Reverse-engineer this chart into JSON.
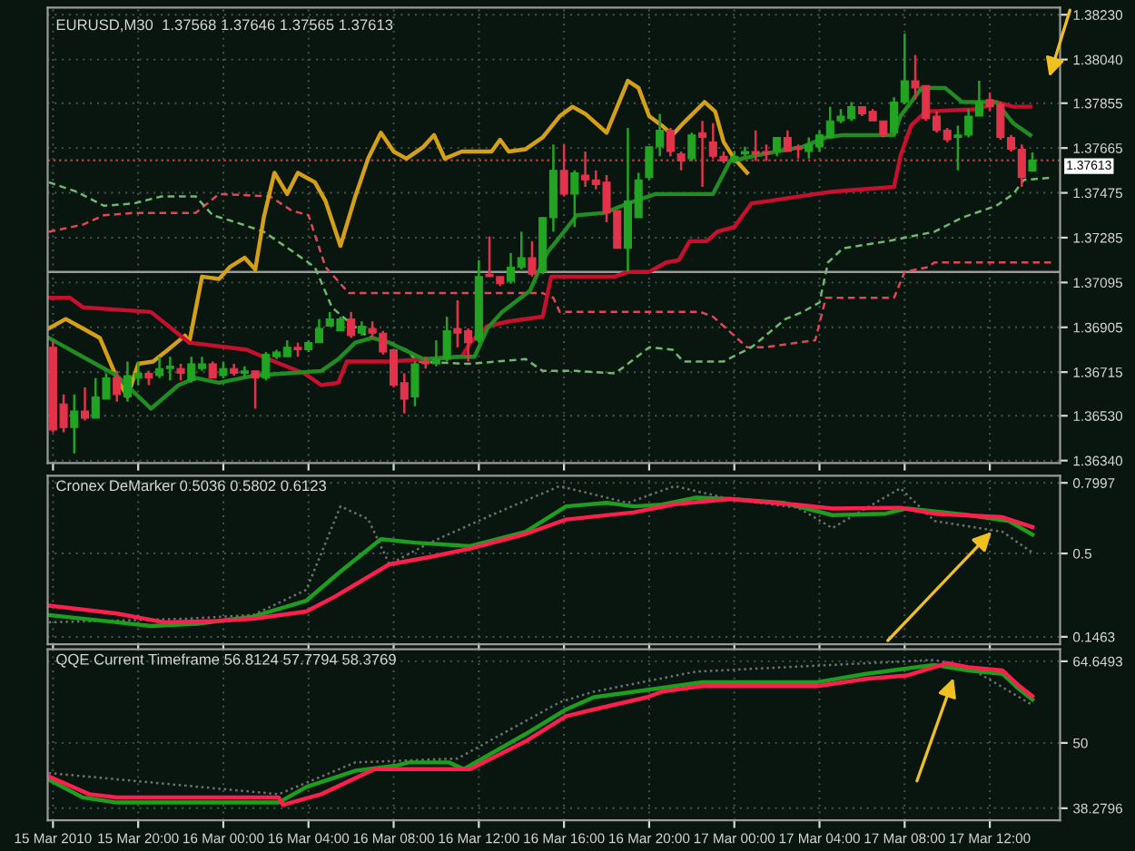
{
  "chart_data": [
    {
      "type": "candlestick",
      "title": "EURUSD,M30  1.37568 1.37646 1.37565 1.37613",
      "grid": true,
      "legend": false,
      "tick_labels": "y",
      "x": [
        "2010-03-15T16:00",
        "2010-03-15T16:30",
        "2010-03-15T17:00",
        "2010-03-15T17:30",
        "2010-03-15T18:00",
        "2010-03-15T18:30",
        "2010-03-15T19:00",
        "2010-03-15T19:30",
        "2010-03-15T20:00",
        "2010-03-15T20:30",
        "2010-03-15T21:00",
        "2010-03-15T21:30",
        "2010-03-15T22:00",
        "2010-03-15T22:30",
        "2010-03-15T23:00",
        "2010-03-15T23:30",
        "2010-03-16T00:00",
        "2010-03-16T00:30",
        "2010-03-16T01:00",
        "2010-03-16T01:30",
        "2010-03-16T02:00",
        "2010-03-16T02:30",
        "2010-03-16T03:00",
        "2010-03-16T03:30",
        "2010-03-16T04:00",
        "2010-03-16T04:30",
        "2010-03-16T05:00",
        "2010-03-16T05:30",
        "2010-03-16T06:00",
        "2010-03-16T06:30",
        "2010-03-16T07:00",
        "2010-03-16T07:30",
        "2010-03-16T08:00",
        "2010-03-16T08:30",
        "2010-03-16T09:00",
        "2010-03-16T09:30",
        "2010-03-16T10:00",
        "2010-03-16T10:30",
        "2010-03-16T11:00",
        "2010-03-16T11:30",
        "2010-03-16T12:00",
        "2010-03-16T12:30",
        "2010-03-16T13:00",
        "2010-03-16T13:30",
        "2010-03-16T14:00",
        "2010-03-16T14:30",
        "2010-03-16T15:00",
        "2010-03-16T15:30",
        "2010-03-16T16:00",
        "2010-03-16T16:30",
        "2010-03-16T17:00",
        "2010-03-16T17:30",
        "2010-03-16T18:00",
        "2010-03-16T18:30",
        "2010-03-16T19:00",
        "2010-03-16T19:30",
        "2010-03-16T20:00",
        "2010-03-16T20:30",
        "2010-03-16T21:00",
        "2010-03-16T21:30",
        "2010-03-16T22:00",
        "2010-03-16T22:30",
        "2010-03-16T23:00",
        "2010-03-16T23:30",
        "2010-03-17T00:00",
        "2010-03-17T00:30",
        "2010-03-17T01:00",
        "2010-03-17T01:30",
        "2010-03-17T02:00",
        "2010-03-17T02:30",
        "2010-03-17T03:00",
        "2010-03-17T03:30",
        "2010-03-17T04:00",
        "2010-03-17T04:30",
        "2010-03-17T05:00",
        "2010-03-17T05:30",
        "2010-03-17T06:00",
        "2010-03-17T06:30",
        "2010-03-17T07:00",
        "2010-03-17T07:30",
        "2010-03-17T08:00",
        "2010-03-17T08:30",
        "2010-03-17T09:00",
        "2010-03-17T09:30",
        "2010-03-17T10:00",
        "2010-03-17T10:30",
        "2010-03-17T11:00",
        "2010-03-17T11:30",
        "2010-03-17T12:00",
        "2010-03-17T12:30",
        "2010-03-17T13:00",
        "2010-03-17T13:30",
        "2010-03-17T14:00"
      ],
      "ohlc": [
        [
          1.3682,
          1.3685,
          1.3646,
          1.3647
        ],
        [
          1.3658,
          1.3662,
          1.3646,
          1.3648
        ],
        [
          1.3648,
          1.3662,
          1.3637,
          1.3655
        ],
        [
          1.3655,
          1.3665,
          1.3651,
          1.3652
        ],
        [
          1.3652,
          1.3669,
          1.3652,
          1.3661
        ],
        [
          1.366,
          1.3671,
          1.366,
          1.3669
        ],
        [
          1.3669,
          1.3672,
          1.3659,
          1.3662
        ],
        [
          1.3661,
          1.3676,
          1.3659,
          1.367
        ],
        [
          1.3669,
          1.3676,
          1.3666,
          1.3671
        ],
        [
          1.3671,
          1.3672,
          1.3666,
          1.3669
        ],
        [
          1.367,
          1.3678,
          1.3669,
          1.3673
        ],
        [
          1.3673,
          1.3678,
          1.3668,
          1.3674
        ],
        [
          1.3673,
          1.3675,
          1.3668,
          1.3671
        ],
        [
          1.3668,
          1.3678,
          1.3667,
          1.3675
        ],
        [
          1.3673,
          1.3678,
          1.3672,
          1.3675
        ],
        [
          1.3675,
          1.3676,
          1.3669,
          1.3669
        ],
        [
          1.367,
          1.3676,
          1.3669,
          1.3673
        ],
        [
          1.3673,
          1.3675,
          1.367,
          1.3671
        ],
        [
          1.3671,
          1.3674,
          1.3669,
          1.3672
        ],
        [
          1.3672,
          1.3672,
          1.3656,
          1.3669
        ],
        [
          1.3669,
          1.368,
          1.3668,
          1.3679
        ],
        [
          1.3678,
          1.3681,
          1.3677,
          1.368
        ],
        [
          1.3678,
          1.3685,
          1.3678,
          1.3682
        ],
        [
          1.3682,
          1.3684,
          1.3678,
          1.3681
        ],
        [
          1.3681,
          1.3685,
          1.368,
          1.3684
        ],
        [
          1.3684,
          1.3694,
          1.3684,
          1.369
        ],
        [
          1.3691,
          1.3697,
          1.3691,
          1.3694
        ],
        [
          1.3689,
          1.3695,
          1.3689,
          1.3694
        ],
        [
          1.3694,
          1.3697,
          1.3686,
          1.3687
        ],
        [
          1.3688,
          1.3693,
          1.3687,
          1.3691
        ],
        [
          1.369,
          1.3693,
          1.3686,
          1.3688
        ],
        [
          1.3688,
          1.3689,
          1.3679,
          1.368
        ],
        [
          1.3681,
          1.3681,
          1.3665,
          1.3666
        ],
        [
          1.3667,
          1.3671,
          1.3654,
          1.366
        ],
        [
          1.3661,
          1.3676,
          1.3657,
          1.3675
        ],
        [
          1.3676,
          1.3678,
          1.3673,
          1.3675
        ],
        [
          1.3675,
          1.3685,
          1.3674,
          1.3677
        ],
        [
          1.3677,
          1.3695,
          1.3676,
          1.3689
        ],
        [
          1.369,
          1.3702,
          1.3682,
          1.3688
        ],
        [
          1.3689,
          1.369,
          1.3676,
          1.3684
        ],
        [
          1.3685,
          1.3719,
          1.3684,
          1.3712
        ],
        [
          1.3713,
          1.3729,
          1.3712,
          1.3712
        ],
        [
          1.3712,
          1.3712,
          1.3708,
          1.3709
        ],
        [
          1.371,
          1.3722,
          1.3709,
          1.3716
        ],
        [
          1.3716,
          1.3731,
          1.3715,
          1.372
        ],
        [
          1.372,
          1.3727,
          1.3712,
          1.3713
        ],
        [
          1.3714,
          1.3737,
          1.3713,
          1.3737
        ],
        [
          1.3737,
          1.3768,
          1.3731,
          1.3757
        ],
        [
          1.3757,
          1.3768,
          1.3746,
          1.3747
        ],
        [
          1.3747,
          1.3757,
          1.3733,
          1.3756
        ],
        [
          1.3755,
          1.3765,
          1.375,
          1.3753
        ],
        [
          1.3753,
          1.3757,
          1.3749,
          1.3751
        ],
        [
          1.3752,
          1.3755,
          1.3735,
          1.3739
        ],
        [
          1.374,
          1.374,
          1.3724,
          1.3724
        ],
        [
          1.3724,
          1.3775,
          1.3714,
          1.3744
        ],
        [
          1.3737,
          1.3756,
          1.3737,
          1.3753
        ],
        [
          1.3754,
          1.3767,
          1.3753,
          1.3767
        ],
        [
          1.3767,
          1.3781,
          1.3763,
          1.3774
        ],
        [
          1.3774,
          1.3775,
          1.3763,
          1.3765
        ],
        [
          1.3764,
          1.3765,
          1.3757,
          1.3761
        ],
        [
          1.3762,
          1.3773,
          1.3761,
          1.3772
        ],
        [
          1.3773,
          1.3778,
          1.375,
          1.3771
        ],
        [
          1.3769,
          1.3777,
          1.3762,
          1.3763
        ],
        [
          1.3763,
          1.3765,
          1.376,
          1.3761
        ],
        [
          1.3761,
          1.3765,
          1.376,
          1.3763
        ],
        [
          1.3764,
          1.3767,
          1.3763,
          1.3765
        ],
        [
          1.3765,
          1.3774,
          1.3761,
          1.3764
        ],
        [
          1.3765,
          1.3768,
          1.3761,
          1.3764
        ],
        [
          1.3765,
          1.3771,
          1.3763,
          1.3771
        ],
        [
          1.3771,
          1.3774,
          1.3765,
          1.3765
        ],
        [
          1.3767,
          1.3768,
          1.3762,
          1.3766
        ],
        [
          1.3765,
          1.3771,
          1.3762,
          1.3768
        ],
        [
          1.3767,
          1.3774,
          1.3765,
          1.3772
        ],
        [
          1.3771,
          1.3784,
          1.3771,
          1.3778
        ],
        [
          1.3778,
          1.3783,
          1.3777,
          1.378
        ],
        [
          1.3779,
          1.3786,
          1.3778,
          1.3784
        ],
        [
          1.3784,
          1.3784,
          1.378,
          1.3781
        ],
        [
          1.3782,
          1.3783,
          1.3778,
          1.3778
        ],
        [
          1.3778,
          1.3778,
          1.3771,
          1.3772
        ],
        [
          1.3773,
          1.3788,
          1.3772,
          1.3786
        ],
        [
          1.3786,
          1.3815,
          1.3785,
          1.3795
        ],
        [
          1.3795,
          1.3806,
          1.3787,
          1.3792
        ],
        [
          1.3793,
          1.3793,
          1.3778,
          1.3779
        ],
        [
          1.378,
          1.3782,
          1.3773,
          1.3774
        ],
        [
          1.3774,
          1.3775,
          1.3769,
          1.377
        ],
        [
          1.3771,
          1.3776,
          1.3757,
          1.3772
        ],
        [
          1.3772,
          1.3783,
          1.3771,
          1.378
        ],
        [
          1.378,
          1.3795,
          1.378,
          1.3786
        ],
        [
          1.3787,
          1.379,
          1.3782,
          1.3784
        ],
        [
          1.3785,
          1.3786,
          1.377,
          1.3771
        ],
        [
          1.3771,
          1.3772,
          1.3765,
          1.3766
        ],
        [
          1.3766,
          1.3768,
          1.375,
          1.3754
        ],
        [
          1.37568,
          1.37646,
          1.37565,
          1.37613
        ]
      ],
      "series": [
        {
          "type": "line",
          "color": "#e04858",
          "line_style": "dashed",
          "x": [
            "2010-03-15T15:48",
            "2010-03-15T17:24",
            "2010-03-15T18:24",
            "2010-03-15T19:48",
            "2010-03-15T22:42",
            "2010-03-15T23:48",
            "2010-03-16T02:12",
            "2010-03-16T03:12",
            "2010-03-16T04:00",
            "2010-03-16T04:48",
            "2010-03-16T05:24",
            "2010-03-16T05:54",
            "2010-03-16T15:00",
            "2010-03-16T15:30",
            "2010-03-16T15:48",
            "2010-03-16T22:24",
            "2010-03-16T23:00",
            "2010-03-16T23:30",
            "2010-03-17T00:36",
            "2010-03-17T01:24",
            "2010-03-17T03:48",
            "2010-03-17T04:18",
            "2010-03-17T07:30",
            "2010-03-17T08:00",
            "2010-03-17T09:06",
            "2010-03-17T09:24",
            "2010-03-17T15:00"
          ],
          "values": [
            1.3731,
            1.3734,
            1.3738,
            1.3739,
            1.3739,
            1.3747,
            1.3746,
            1.374,
            1.3738,
            1.3716,
            1.371,
            1.3705,
            1.3705,
            1.3703,
            1.3697,
            1.3697,
            1.3695,
            1.3691,
            1.3682,
            1.3682,
            1.3685,
            1.3703,
            1.3703,
            1.3714,
            1.3716,
            1.3718,
            1.3718
          ]
        },
        {
          "type": "line",
          "color": "#70b870",
          "line_style": "dashed",
          "x": [
            "2010-03-15T15:48",
            "2010-03-15T17:06",
            "2010-03-15T18:24",
            "2010-03-15T19:48",
            "2010-03-15T21:06",
            "2010-03-15T22:42",
            "2010-03-15T23:30",
            "2010-03-16T00:36",
            "2010-03-16T01:54",
            "2010-03-16T03:12",
            "2010-03-16T04:18",
            "2010-03-16T05:06",
            "2010-03-16T05:36",
            "2010-03-16T06:42",
            "2010-03-16T07:48",
            "2010-03-16T08:36",
            "2010-03-16T09:06",
            "2010-03-16T11:30",
            "2010-03-16T14:12",
            "2010-03-16T15:00",
            "2010-03-16T16:36",
            "2010-03-16T18:24",
            "2010-03-16T19:00",
            "2010-03-16T20:00",
            "2010-03-16T21:06",
            "2010-03-16T21:36",
            "2010-03-16T23:30",
            "2010-03-17T00:48",
            "2010-03-17T02:24",
            "2010-03-17T03:12",
            "2010-03-17T04:00",
            "2010-03-17T04:24",
            "2010-03-17T05:06",
            "2010-03-17T07:12",
            "2010-03-17T08:18",
            "2010-03-17T09:24",
            "2010-03-17T10:42",
            "2010-03-17T12:18",
            "2010-03-17T13:06",
            "2010-03-17T13:36",
            "2010-03-17T15:00"
          ],
          "values": [
            1.3752,
            1.3748,
            1.3742,
            1.3743,
            1.3746,
            1.3746,
            1.3738,
            1.3735,
            1.3731,
            1.3723,
            1.3716,
            1.3699,
            1.3695,
            1.3687,
            1.3684,
            1.3681,
            1.3676,
            1.3675,
            1.3677,
            1.3672,
            1.3672,
            1.3671,
            1.3675,
            1.3682,
            1.3681,
            1.3676,
            1.3676,
            1.3682,
            1.3694,
            1.3697,
            1.3701,
            1.3718,
            1.3724,
            1.3727,
            1.3729,
            1.3731,
            1.3737,
            1.3742,
            1.3747,
            1.3753,
            1.3754
          ]
        },
        {
          "type": "line",
          "color": "#d4a017",
          "x": [
            "2010-03-15T15:48",
            "2010-03-15T16:36",
            "2010-03-15T17:24",
            "2010-03-15T18:12",
            "2010-03-15T19:00",
            "2010-03-15T19:30",
            "2010-03-15T20:00",
            "2010-03-15T20:42",
            "2010-03-15T21:24",
            "2010-03-15T22:12",
            "2010-03-15T22:24",
            "2010-03-15T23:00",
            "2010-03-15T23:48",
            "2010-03-16T00:18",
            "2010-03-16T01:00",
            "2010-03-16T01:30",
            "2010-03-16T01:54",
            "2010-03-16T02:24",
            "2010-03-16T03:00",
            "2010-03-16T03:30",
            "2010-03-16T04:18",
            "2010-03-16T04:48",
            "2010-03-16T05:30",
            "2010-03-16T06:12",
            "2010-03-16T06:48",
            "2010-03-16T07:24",
            "2010-03-16T08:00",
            "2010-03-16T08:36",
            "2010-03-16T09:24",
            "2010-03-16T09:54",
            "2010-03-16T10:24",
            "2010-03-16T11:12",
            "2010-03-16T12:00",
            "2010-03-16T12:36",
            "2010-03-16T13:00",
            "2010-03-16T13:24",
            "2010-03-16T14:12",
            "2010-03-16T15:00",
            "2010-03-16T15:48",
            "2010-03-16T16:24",
            "2010-03-16T17:00",
            "2010-03-16T18:00",
            "2010-03-16T19:00",
            "2010-03-16T19:30",
            "2010-03-16T20:00",
            "2010-03-16T20:36",
            "2010-03-16T21:06",
            "2010-03-16T21:36",
            "2010-03-16T22:36",
            "2010-03-16T23:06",
            "2010-03-16T23:30",
            "2010-03-17T00:00",
            "2010-03-17T00:36"
          ],
          "values": [
            1.369,
            1.3694,
            1.369,
            1.3686,
            1.3669,
            1.3661,
            1.3675,
            1.3676,
            1.3681,
            1.3687,
            1.3684,
            1.3712,
            1.3711,
            1.3716,
            1.372,
            1.3715,
            1.3737,
            1.3756,
            1.3747,
            1.3756,
            1.3752,
            1.3744,
            1.3725,
            1.3746,
            1.3762,
            1.3773,
            1.3765,
            1.3762,
            1.3767,
            1.3772,
            1.3762,
            1.3765,
            1.3765,
            1.3765,
            1.377,
            1.3765,
            1.3766,
            1.3771,
            1.378,
            1.3784,
            1.3781,
            1.3773,
            1.3795,
            1.3792,
            1.378,
            1.3776,
            1.3772,
            1.3777,
            1.3786,
            1.3782,
            1.3769,
            1.3762,
            1.3756
          ]
        },
        {
          "type": "line",
          "color": "#c8102e",
          "x": [
            "2010-03-15T15:48",
            "2010-03-15T16:48",
            "2010-03-15T17:24",
            "2010-03-15T20:36",
            "2010-03-15T22:24",
            "2010-03-16T01:06",
            "2010-03-16T02:24",
            "2010-03-16T03:48",
            "2010-03-16T04:36",
            "2010-03-16T05:24",
            "2010-03-16T05:48",
            "2010-03-16T06:42",
            "2010-03-16T07:48",
            "2010-03-16T11:12",
            "2010-03-16T11:36",
            "2010-03-16T12:24",
            "2010-03-16T13:24",
            "2010-03-16T15:00",
            "2010-03-16T15:24",
            "2010-03-16T18:24",
            "2010-03-16T19:00",
            "2010-03-16T20:00",
            "2010-03-16T20:48",
            "2010-03-16T21:24",
            "2010-03-16T21:54",
            "2010-03-16T22:42",
            "2010-03-16T23:12",
            "2010-03-17T00:00",
            "2010-03-17T00:48",
            "2010-03-17T01:36",
            "2010-03-17T03:48",
            "2010-03-17T04:36",
            "2010-03-17T07:30",
            "2010-03-17T07:48",
            "2010-03-17T08:18",
            "2010-03-17T09:00",
            "2010-03-17T11:30",
            "2010-03-17T12:18",
            "2010-03-17T13:06",
            "2010-03-17T13:54"
          ],
          "values": [
            1.3703,
            1.3703,
            1.3699,
            1.3697,
            1.3684,
            1.3681,
            1.3676,
            1.3671,
            1.3666,
            1.3667,
            1.3676,
            1.3676,
            1.3676,
            1.3678,
            1.3684,
            1.3691,
            1.3693,
            1.3695,
            1.3712,
            1.3712,
            1.3714,
            1.3714,
            1.3718,
            1.3719,
            1.3727,
            1.3727,
            1.3731,
            1.3733,
            1.3743,
            1.3744,
            1.3747,
            1.3748,
            1.375,
            1.3763,
            1.3776,
            1.3782,
            1.3783,
            1.3786,
            1.3784,
            1.3784
          ]
        },
        {
          "type": "line",
          "color": "#228b22",
          "x": [
            "2010-03-15T15:48",
            "2010-03-15T16:36",
            "2010-03-15T17:24",
            "2010-03-15T19:00",
            "2010-03-15T20:36",
            "2010-03-15T21:54",
            "2010-03-15T22:42",
            "2010-03-15T23:48",
            "2010-03-16T01:24",
            "2010-03-16T03:00",
            "2010-03-16T04:36",
            "2010-03-16T05:24",
            "2010-03-16T06:12",
            "2010-03-16T07:00",
            "2010-03-16T07:48",
            "2010-03-16T09:24",
            "2010-03-16T11:00",
            "2010-03-16T11:48",
            "2010-03-16T12:24",
            "2010-03-16T13:06",
            "2010-03-16T14:24",
            "2010-03-16T15:12",
            "2010-03-16T16:00",
            "2010-03-16T16:36",
            "2010-03-16T17:54",
            "2010-03-16T19:00",
            "2010-03-16T20:18",
            "2010-03-16T23:00",
            "2010-03-16T23:48",
            "2010-03-17T01:24",
            "2010-03-17T03:12",
            "2010-03-17T04:18",
            "2010-03-17T05:06",
            "2010-03-17T07:30",
            "2010-03-17T07:48",
            "2010-03-17T08:48",
            "2010-03-17T09:54",
            "2010-03-17T10:42",
            "2010-03-17T12:18",
            "2010-03-17T13:06",
            "2010-03-17T13:54"
          ],
          "values": [
            1.3686,
            1.3682,
            1.3678,
            1.367,
            1.3656,
            1.3666,
            1.3669,
            1.3667,
            1.367,
            1.3671,
            1.3672,
            1.3677,
            1.3684,
            1.3686,
            1.3684,
            1.3677,
            1.3678,
            1.3678,
            1.369,
            1.3697,
            1.3706,
            1.3722,
            1.3731,
            1.3738,
            1.3739,
            1.3743,
            1.3747,
            1.3747,
            1.3761,
            1.3764,
            1.3767,
            1.3771,
            1.3772,
            1.3772,
            1.378,
            1.3792,
            1.3792,
            1.3786,
            1.3786,
            1.3777,
            1.3772
          ]
        }
      ],
      "ref_lines": [
        {
          "axis": "y",
          "value": 1.3714,
          "color": "#9a9a9a",
          "line_style": "solid"
        },
        {
          "axis": "y",
          "value": 1.37613,
          "label": "1.37613",
          "color": "#b03a3a",
          "line_style": "dotted"
        }
      ],
      "xlim": [
        "2010-03-15T15:45",
        "2010-03-17T15:18"
      ],
      "ylim": [
        1.3633,
        1.3826
      ],
      "xticks": [
        {
          "value": "2010-03-15T16:00",
          "label": null
        },
        {
          "value": "2010-03-15T20:00",
          "label": null
        },
        {
          "value": "2010-03-16T00:00",
          "label": null
        },
        {
          "value": "2010-03-16T04:00",
          "label": null
        },
        {
          "value": "2010-03-16T08:00",
          "label": null
        },
        {
          "value": "2010-03-16T12:00",
          "label": null
        },
        {
          "value": "2010-03-16T16:00",
          "label": null
        },
        {
          "value": "2010-03-16T20:00",
          "label": null
        },
        {
          "value": "2010-03-17T00:00",
          "label": null
        },
        {
          "value": "2010-03-17T04:00",
          "label": null
        },
        {
          "value": "2010-03-17T08:00",
          "label": null
        },
        {
          "value": "2010-03-17T12:00",
          "label": null
        }
      ],
      "yticks": [
        {
          "value": 1.3823,
          "label": "1.38230"
        },
        {
          "value": 1.3804,
          "label": "1.38040"
        },
        1.37855,
        1.37665,
        1.37475,
        1.37285,
        1.37095,
        1.36905,
        1.36715,
        {
          "value": 1.3653,
          "label": "1.36530"
        },
        {
          "value": 1.3634,
          "label": "1.36340"
        }
      ]
    },
    {
      "type": "line",
      "title": "Cronex DeMarker 0.5036 0.5802 0.6123",
      "grid": true,
      "legend": false,
      "tick_labels": "y",
      "series": [
        {
          "color": "#707070",
          "line_style": "dotted",
          "x": [
            "2010-03-15T15:48",
            "2010-03-15T22:12",
            "2010-03-16T01:24",
            "2010-03-16T03:54",
            "2010-03-16T05:30",
            "2010-03-16T06:48",
            "2010-03-16T07:48",
            "2010-03-16T09:42",
            "2010-03-16T12:36",
            "2010-03-16T15:48",
            "2010-03-16T19:00",
            "2010-03-16T21:12",
            "2010-03-16T23:48",
            "2010-03-17T03:00",
            "2010-03-17T04:36",
            "2010-03-17T07:48",
            "2010-03-17T09:24",
            "2010-03-17T12:36",
            "2010-03-17T14:00"
          ],
          "values": [
            0.208,
            0.223,
            0.239,
            0.346,
            0.7,
            0.646,
            0.454,
            0.546,
            0.663,
            0.786,
            0.715,
            0.786,
            0.731,
            0.694,
            0.608,
            0.777,
            0.638,
            0.592,
            0.5036
          ]
        },
        {
          "color": "#1e9e1e",
          "x": [
            "2010-03-15T15:48",
            "2010-03-15T19:00",
            "2010-03-15T20:36",
            "2010-03-15T22:48",
            "2010-03-16T01:24",
            "2010-03-16T03:54",
            "2010-03-16T05:30",
            "2010-03-16T07:24",
            "2010-03-16T09:00",
            "2010-03-16T11:36",
            "2010-03-16T14:12",
            "2010-03-16T16:06",
            "2010-03-16T18:00",
            "2010-03-16T19:18",
            "2010-03-16T20:36",
            "2010-03-16T22:12",
            "2010-03-16T23:48",
            "2010-03-17T02:18",
            "2010-03-17T04:36",
            "2010-03-17T07:06",
            "2010-03-17T08:06",
            "2010-03-17T11:00",
            "2010-03-17T12:54",
            "2010-03-17T14:00"
          ],
          "values": [
            0.239,
            0.208,
            0.192,
            0.202,
            0.232,
            0.3,
            0.423,
            0.561,
            0.546,
            0.531,
            0.592,
            0.7,
            0.715,
            0.7,
            0.707,
            0.737,
            0.731,
            0.715,
            0.663,
            0.669,
            0.691,
            0.663,
            0.638,
            0.5802
          ]
        },
        {
          "color": "#ff1f4f",
          "x": [
            "2010-03-15T15:48",
            "2010-03-15T19:00",
            "2010-03-15T21:12",
            "2010-03-15T23:48",
            "2010-03-16T01:24",
            "2010-03-16T03:54",
            "2010-03-16T05:12",
            "2010-03-16T07:48",
            "2010-03-16T09:42",
            "2010-03-16T11:36",
            "2010-03-16T14:12",
            "2010-03-16T16:06",
            "2010-03-16T19:18",
            "2010-03-16T21:12",
            "2010-03-16T23:48",
            "2010-03-17T03:00",
            "2010-03-17T04:36",
            "2010-03-17T07:48",
            "2010-03-17T09:24",
            "2010-03-17T12:36",
            "2010-03-17T14:00"
          ],
          "values": [
            0.279,
            0.245,
            0.208,
            0.214,
            0.223,
            0.254,
            0.315,
            0.454,
            0.485,
            0.521,
            0.583,
            0.644,
            0.675,
            0.709,
            0.731,
            0.706,
            0.691,
            0.694,
            0.669,
            0.654,
            0.6123
          ]
        }
      ],
      "xlim": [
        "2010-03-15T15:45",
        "2010-03-17T15:18"
      ],
      "ylim": [
        0.115,
        0.83
      ],
      "xticks": [
        {
          "value": "2010-03-15T16:00",
          "label": null
        },
        {
          "value": "2010-03-15T20:00",
          "label": null
        },
        {
          "value": "2010-03-16T00:00",
          "label": null
        },
        {
          "value": "2010-03-16T04:00",
          "label": null
        },
        {
          "value": "2010-03-16T08:00",
          "label": null
        },
        {
          "value": "2010-03-16T12:00",
          "label": null
        },
        {
          "value": "2010-03-16T16:00",
          "label": null
        },
        {
          "value": "2010-03-16T20:00",
          "label": null
        },
        {
          "value": "2010-03-17T00:00",
          "label": null
        },
        {
          "value": "2010-03-17T04:00",
          "label": null
        },
        {
          "value": "2010-03-17T08:00",
          "label": null
        },
        {
          "value": "2010-03-17T12:00",
          "label": null
        }
      ],
      "yticks": [
        0.1463,
        0.5,
        0.7997
      ]
    },
    {
      "type": "line",
      "title": "QQE Current Timeframe 56.8124 57.7794 58.3769",
      "grid": true,
      "legend": false,
      "series": [
        {
          "color": "#707070",
          "line_style": "dotted",
          "x": [
            "2010-03-15T15:48",
            "2010-03-16T02:36",
            "2010-03-16T06:12",
            "2010-03-16T11:00",
            "2010-03-16T15:48",
            "2010-03-16T17:24",
            "2010-03-16T22:12",
            "2010-03-17T06:12",
            "2010-03-17T09:24",
            "2010-03-17T11:00",
            "2010-03-17T14:00"
          ],
          "values": [
            44.6,
            40.8,
            46.5,
            47.2,
            57.3,
            59.2,
            62.8,
            64.3,
            64.9,
            63.6,
            56.8124
          ]
        },
        {
          "color": "#1e9e1e",
          "x": [
            "2010-03-15T15:48",
            "2010-03-15T17:24",
            "2010-03-15T19:00",
            "2010-03-16T02:36",
            "2010-03-16T03:54",
            "2010-03-16T06:12",
            "2010-03-16T08:06",
            "2010-03-16T08:42",
            "2010-03-16T10:36",
            "2010-03-16T11:18",
            "2010-03-16T14:12",
            "2010-03-16T16:06",
            "2010-03-16T17:24",
            "2010-03-16T19:54",
            "2010-03-16T22:30",
            "2010-03-17T03:54",
            "2010-03-17T06:12",
            "2010-03-17T09:24",
            "2010-03-17T10:00",
            "2010-03-17T11:00",
            "2010-03-17T12:36",
            "2010-03-17T13:18",
            "2010-03-17T14:00"
          ],
          "values": [
            43.4,
            40.2,
            39.3,
            39.3,
            42.1,
            45.0,
            45.9,
            46.5,
            46.5,
            45.3,
            51.6,
            56.0,
            58.2,
            59.5,
            60.9,
            60.9,
            62.4,
            64.0,
            63.6,
            63.0,
            62.4,
            59.9,
            57.7794
          ]
        },
        {
          "color": "#ff1f4f",
          "x": [
            "2010-03-15T15:48",
            "2010-03-15T17:42",
            "2010-03-15T19:00",
            "2010-03-16T02:36",
            "2010-03-16T02:48",
            "2010-03-16T04:36",
            "2010-03-16T07:06",
            "2010-03-16T11:36",
            "2010-03-16T14:12",
            "2010-03-16T16:06",
            "2010-03-16T17:24",
            "2010-03-16T19:54",
            "2010-03-16T20:36",
            "2010-03-16T22:30",
            "2010-03-17T03:54",
            "2010-03-17T06:12",
            "2010-03-17T08:06",
            "2010-03-17T10:00",
            "2010-03-17T11:00",
            "2010-03-17T12:36",
            "2010-03-17T13:18",
            "2010-03-17T14:00"
          ],
          "values": [
            44.0,
            40.8,
            40.2,
            40.2,
            38.9,
            40.8,
            45.3,
            45.3,
            50.3,
            54.8,
            56.0,
            58.2,
            59.2,
            60.2,
            60.2,
            61.5,
            62.1,
            64.3,
            63.6,
            63.0,
            60.5,
            58.3769
          ]
        }
      ],
      "xlim": [
        "2010-03-15T15:45",
        "2010-03-17T15:18"
      ],
      "ylim": [
        36.1,
        66.8
      ],
      "xticks": [
        {
          "value": "2010-03-15T16:00",
          "label": "15 Mar 2010"
        },
        {
          "value": "2010-03-15T20:00",
          "label": "15 Mar 20:00"
        },
        {
          "value": "2010-03-16T00:00",
          "label": "16 Mar 00:00"
        },
        {
          "value": "2010-03-16T04:00",
          "label": "16 Mar 04:00"
        },
        {
          "value": "2010-03-16T08:00",
          "label": "16 Mar 08:00"
        },
        {
          "value": "2010-03-16T12:00",
          "label": "16 Mar 12:00"
        },
        {
          "value": "2010-03-16T16:00",
          "label": "16 Mar 16:00"
        },
        {
          "value": "2010-03-16T20:00",
          "label": "16 Mar 20:00"
        },
        {
          "value": "2010-03-17T00:00",
          "label": "17 Mar 00:00"
        },
        {
          "value": "2010-03-17T04:00",
          "label": "17 Mar 04:00"
        },
        {
          "value": "2010-03-17T08:00",
          "label": "17 Mar 08:00"
        },
        {
          "value": "2010-03-17T12:00",
          "label": "17 Mar 12:00"
        }
      ],
      "yticks": [
        38.2796,
        50,
        64.6493
      ]
    }
  ]
}
